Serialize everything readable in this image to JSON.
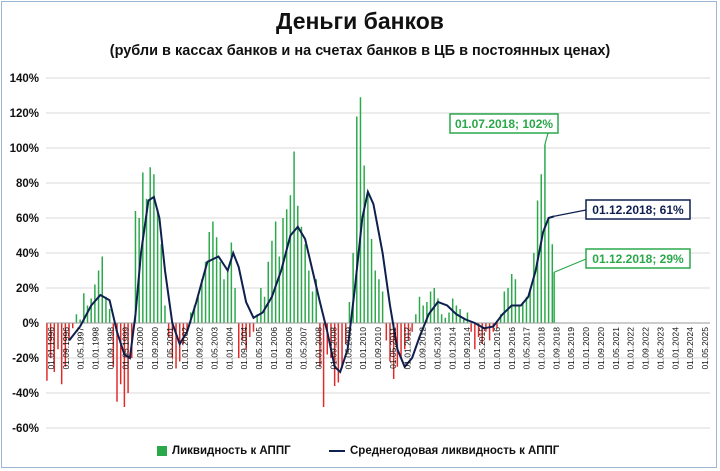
{
  "page": {
    "title": "Деньги банков",
    "subtitle": "(рубли в кассах банков и на счетах банков в ЦБ в постоянных ценах)"
  },
  "colors": {
    "bar_positive": "#2aa84a",
    "bar_negative": "#e02a2a",
    "line": "#0f1f4f",
    "grid": "#d9d9d9",
    "green_box": "#2aa84a",
    "navy_box": "#0f1f4f"
  },
  "chart_data": {
    "type": "bar",
    "ylim": [
      -60,
      140
    ],
    "y_ticks": [
      -60,
      -40,
      -20,
      0,
      20,
      40,
      60,
      80,
      100,
      120,
      140
    ],
    "y_tick_labels": [
      "-60%",
      "-40%",
      "-20%",
      "0%",
      "20%",
      "40%",
      "60%",
      "80%",
      "100%",
      "120%",
      "140%"
    ],
    "x_start": "1996-01",
    "x_end": "2025-12",
    "x_tick_labels": [
      "01.01.1996",
      "01.09.1996",
      "01.05.1997",
      "01.01.1998",
      "01.09.1998",
      "01.05.1999",
      "01.01.2000",
      "01.09.2000",
      "01.05.2001",
      "01.01.2002",
      "01.09.2002",
      "01.05.2003",
      "01.01.2004",
      "01.09.2004",
      "01.05.2005",
      "01.01.2006",
      "01.09.2006",
      "01.05.2007",
      "01.01.2008",
      "01.09.2008",
      "01.05.2009",
      "01.01.2010",
      "01.09.2010",
      "01.05.2011",
      "01.01.2012",
      "01.09.2012",
      "01.05.2013",
      "01.01.2014",
      "01.09.2014",
      "01.05.2015",
      "01.01.2016",
      "01.09.2016",
      "01.05.2017",
      "01.01.2018",
      "01.09.2018",
      "01.05.2019",
      "01.01.2020",
      "01.09.2020",
      "01.05.2021",
      "01.01.2022",
      "01.09.2022",
      "01.05.2023",
      "01.01.2024",
      "01.09.2024",
      "01.05.2025"
    ],
    "series": [
      {
        "name": "Ликвидность к АППГ",
        "kind": "bar",
        "points": [
          [
            "1996-01",
            -33
          ],
          [
            "1996-03",
            -20
          ],
          [
            "1996-05",
            -28
          ],
          [
            "1996-07",
            -15
          ],
          [
            "1996-09",
            -35
          ],
          [
            "1996-11",
            -25
          ],
          [
            "1997-01",
            -10
          ],
          [
            "1997-03",
            -3
          ],
          [
            "1997-05",
            5
          ],
          [
            "1997-07",
            2
          ],
          [
            "1997-09",
            17
          ],
          [
            "1997-11",
            10
          ],
          [
            "1998-01",
            14
          ],
          [
            "1998-03",
            22
          ],
          [
            "1998-05",
            30
          ],
          [
            "1998-07",
            38
          ],
          [
            "1998-09",
            15
          ],
          [
            "1998-11",
            8
          ],
          [
            "1999-01",
            -25
          ],
          [
            "1999-03",
            -45
          ],
          [
            "1999-05",
            -35
          ],
          [
            "1999-07",
            -48
          ],
          [
            "1999-09",
            -40
          ],
          [
            "1999-11",
            -20
          ],
          [
            "2000-01",
            64
          ],
          [
            "2000-03",
            60
          ],
          [
            "2000-05",
            86
          ],
          [
            "2000-07",
            71
          ],
          [
            "2000-09",
            89
          ],
          [
            "2000-11",
            85
          ],
          [
            "2001-01",
            65
          ],
          [
            "2001-03",
            45
          ],
          [
            "2001-05",
            10
          ],
          [
            "2001-07",
            -8
          ],
          [
            "2001-09",
            -20
          ],
          [
            "2001-11",
            -26
          ],
          [
            "2002-01",
            -22
          ],
          [
            "2002-03",
            -12
          ],
          [
            "2002-05",
            -5
          ],
          [
            "2002-07",
            6
          ],
          [
            "2002-09",
            10
          ],
          [
            "2002-11",
            15
          ],
          [
            "2003-01",
            25
          ],
          [
            "2003-03",
            35
          ],
          [
            "2003-05",
            52
          ],
          [
            "2003-07",
            58
          ],
          [
            "2003-09",
            49
          ],
          [
            "2003-11",
            35
          ],
          [
            "2004-01",
            25
          ],
          [
            "2004-03",
            30
          ],
          [
            "2004-05",
            46
          ],
          [
            "2004-07",
            20
          ],
          [
            "2004-09",
            -20
          ],
          [
            "2004-11",
            -10
          ],
          [
            "2005-01",
            -15
          ],
          [
            "2005-03",
            -8
          ],
          [
            "2005-05",
            -5
          ],
          [
            "2005-07",
            5
          ],
          [
            "2005-09",
            20
          ],
          [
            "2005-11",
            15
          ],
          [
            "2006-01",
            35
          ],
          [
            "2006-03",
            47
          ],
          [
            "2006-05",
            58
          ],
          [
            "2006-07",
            38
          ],
          [
            "2006-09",
            60
          ],
          [
            "2006-11",
            65
          ],
          [
            "2007-01",
            73
          ],
          [
            "2007-03",
            98
          ],
          [
            "2007-05",
            67
          ],
          [
            "2007-07",
            55
          ],
          [
            "2007-09",
            45
          ],
          [
            "2007-11",
            30
          ],
          [
            "2008-01",
            18
          ],
          [
            "2008-03",
            25
          ],
          [
            "2008-05",
            -25
          ],
          [
            "2008-07",
            -48
          ],
          [
            "2008-09",
            -18
          ],
          [
            "2008-11",
            -20
          ],
          [
            "2009-01",
            -36
          ],
          [
            "2009-03",
            -34
          ],
          [
            "2009-05",
            -26
          ],
          [
            "2009-07",
            -12
          ],
          [
            "2009-09",
            12
          ],
          [
            "2009-11",
            40
          ],
          [
            "2010-01",
            118
          ],
          [
            "2010-03",
            129
          ],
          [
            "2010-05",
            90
          ],
          [
            "2010-07",
            75
          ],
          [
            "2010-09",
            48
          ],
          [
            "2010-11",
            30
          ],
          [
            "2011-01",
            25
          ],
          [
            "2011-03",
            18
          ],
          [
            "2011-05",
            -10
          ],
          [
            "2011-07",
            -22
          ],
          [
            "2011-09",
            -32
          ],
          [
            "2011-11",
            -25
          ],
          [
            "2012-01",
            -20
          ],
          [
            "2012-03",
            -15
          ],
          [
            "2012-05",
            -10
          ],
          [
            "2012-07",
            -5
          ],
          [
            "2012-09",
            5
          ],
          [
            "2012-11",
            15
          ],
          [
            "2013-01",
            10
          ],
          [
            "2013-03",
            12
          ],
          [
            "2013-05",
            18
          ],
          [
            "2013-07",
            20
          ],
          [
            "2013-09",
            14
          ],
          [
            "2013-11",
            5
          ],
          [
            "2014-01",
            3
          ],
          [
            "2014-03",
            6
          ],
          [
            "2014-05",
            14
          ],
          [
            "2014-07",
            10
          ],
          [
            "2014-09",
            8
          ],
          [
            "2014-11",
            2
          ],
          [
            "2015-01",
            6
          ],
          [
            "2015-03",
            -5
          ],
          [
            "2015-05",
            -15
          ],
          [
            "2015-07",
            -8
          ],
          [
            "2015-09",
            -12
          ],
          [
            "2015-11",
            -5
          ],
          [
            "2016-01",
            -10
          ],
          [
            "2016-03",
            -5
          ],
          [
            "2016-05",
            -3
          ],
          [
            "2016-07",
            5
          ],
          [
            "2016-09",
            18
          ],
          [
            "2016-11",
            20
          ],
          [
            "2017-01",
            28
          ],
          [
            "2017-03",
            25
          ],
          [
            "2017-05",
            10
          ],
          [
            "2017-07",
            12
          ],
          [
            "2017-09",
            15
          ],
          [
            "2017-11",
            20
          ],
          [
            "2018-01",
            40
          ],
          [
            "2018-03",
            70
          ],
          [
            "2018-05",
            85
          ],
          [
            "2018-07",
            102
          ],
          [
            "2018-09",
            60
          ],
          [
            "2018-11",
            45
          ],
          [
            "2018-12",
            29
          ]
        ]
      },
      {
        "name": "Среднегодовая ликвидность к АППГ",
        "kind": "line",
        "points": [
          [
            "1997-01",
            -10
          ],
          [
            "1997-07",
            -2
          ],
          [
            "1998-01",
            10
          ],
          [
            "1998-06",
            16
          ],
          [
            "1998-11",
            13
          ],
          [
            "1999-03",
            -5
          ],
          [
            "1999-07",
            -18
          ],
          [
            "1999-10",
            -20
          ],
          [
            "2000-01",
            5
          ],
          [
            "2000-04",
            40
          ],
          [
            "2000-08",
            70
          ],
          [
            "2000-11",
            72
          ],
          [
            "2001-02",
            60
          ],
          [
            "2001-05",
            30
          ],
          [
            "2001-09",
            0
          ],
          [
            "2002-01",
            -12
          ],
          [
            "2002-05",
            -5
          ],
          [
            "2002-10",
            12
          ],
          [
            "2003-04",
            35
          ],
          [
            "2003-10",
            38
          ],
          [
            "2004-03",
            30
          ],
          [
            "2004-06",
            40
          ],
          [
            "2004-09",
            32
          ],
          [
            "2005-01",
            12
          ],
          [
            "2005-05",
            3
          ],
          [
            "2005-10",
            6
          ],
          [
            "2006-03",
            15
          ],
          [
            "2006-08",
            30
          ],
          [
            "2007-01",
            50
          ],
          [
            "2007-05",
            55
          ],
          [
            "2007-09",
            48
          ],
          [
            "2008-01",
            30
          ],
          [
            "2008-05",
            12
          ],
          [
            "2008-09",
            -5
          ],
          [
            "2009-01",
            -25
          ],
          [
            "2009-04",
            -28
          ],
          [
            "2009-08",
            -15
          ],
          [
            "2009-12",
            20
          ],
          [
            "2010-04",
            60
          ],
          [
            "2010-07",
            75
          ],
          [
            "2010-10",
            68
          ],
          [
            "2011-03",
            40
          ],
          [
            "2011-07",
            10
          ],
          [
            "2011-11",
            -15
          ],
          [
            "2012-03",
            -25
          ],
          [
            "2012-07",
            -20
          ],
          [
            "2012-11",
            -8
          ],
          [
            "2013-04",
            5
          ],
          [
            "2013-09",
            12
          ],
          [
            "2014-02",
            10
          ],
          [
            "2014-07",
            5
          ],
          [
            "2014-12",
            2
          ],
          [
            "2015-05",
            0
          ],
          [
            "2015-10",
            -3
          ],
          [
            "2016-03",
            -2
          ],
          [
            "2016-08",
            5
          ],
          [
            "2017-01",
            10
          ],
          [
            "2017-06",
            10
          ],
          [
            "2017-10",
            15
          ],
          [
            "2018-02",
            30
          ],
          [
            "2018-06",
            52
          ],
          [
            "2018-09",
            60
          ],
          [
            "2018-12",
            61
          ]
        ]
      }
    ],
    "annotations": [
      {
        "text": "01.07.2018; 102%",
        "date": "2018-07",
        "value": 102,
        "style": "green"
      },
      {
        "text": "01.12.2018; 61%",
        "date": "2018-12",
        "value": 61,
        "style": "navy"
      },
      {
        "text": "01.12.2018; 29%",
        "date": "2018-12",
        "value": 29,
        "style": "green"
      }
    ],
    "grid": true,
    "legend_position": "bottom"
  },
  "legend": {
    "bars_label": "Ликвидность к АППГ",
    "line_label": "Среднегодовая ликвидность к АППГ"
  }
}
